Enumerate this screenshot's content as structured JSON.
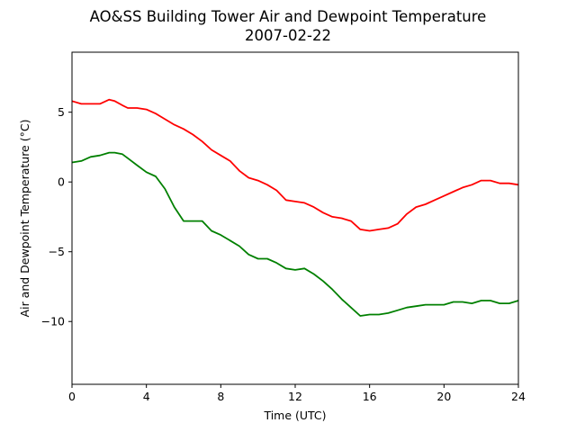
{
  "chart_data": {
    "type": "line",
    "title": "AO&SS Building Tower Air and Dewpoint Temperature",
    "subtitle": "2007-02-22",
    "xlabel": "Time (UTC)",
    "ylabel": "Air and Dewpoint Temperature (°C)",
    "xlim": [
      0,
      24
    ],
    "ylim": [
      -14.5,
      9.3
    ],
    "xticks": [
      0,
      4,
      8,
      12,
      16,
      20,
      24
    ],
    "xtick_labels": [
      "0",
      "4",
      "8",
      "12",
      "16",
      "20",
      "24"
    ],
    "yticks": [
      5,
      0,
      -5,
      -10
    ],
    "ytick_labels": [
      "5",
      "0",
      "−5",
      "−10"
    ],
    "grid": false,
    "series": [
      {
        "color": "#ff0000",
        "x": [
          0,
          0.5,
          1.0,
          1.5,
          2.0,
          2.3,
          2.7,
          3.0,
          3.5,
          4.0,
          4.5,
          5.0,
          5.5,
          6.0,
          6.5,
          7.0,
          7.5,
          8.0,
          8.5,
          9.0,
          9.5,
          10.0,
          10.5,
          11.0,
          11.5,
          12.0,
          12.5,
          13.0,
          13.5,
          14.0,
          14.5,
          15.0,
          15.5,
          16.0,
          16.5,
          17.0,
          17.5,
          18.0,
          18.5,
          19.0,
          19.5,
          20.0,
          20.5,
          21.0,
          21.5,
          22.0,
          22.5,
          23.0,
          23.5,
          24.0
        ],
        "y": [
          5.8,
          5.6,
          5.6,
          5.6,
          5.9,
          5.8,
          5.5,
          5.3,
          5.3,
          5.2,
          4.9,
          4.5,
          4.1,
          3.8,
          3.4,
          2.9,
          2.3,
          1.9,
          1.5,
          0.8,
          0.3,
          0.1,
          -0.2,
          -0.6,
          -1.3,
          -1.4,
          -1.5,
          -1.8,
          -2.2,
          -2.5,
          -2.6,
          -2.8,
          -3.4,
          -3.5,
          -3.4,
          -3.3,
          -3.0,
          -2.3,
          -1.8,
          -1.6,
          -1.3,
          -1.0,
          -0.7,
          -0.4,
          -0.2,
          0.1,
          0.1,
          -0.1,
          -0.1,
          -0.2
        ]
      },
      {
        "color": "#008000",
        "x": [
          0,
          0.5,
          1.0,
          1.5,
          2.0,
          2.3,
          2.7,
          3.0,
          3.5,
          4.0,
          4.5,
          5.0,
          5.5,
          6.0,
          6.5,
          7.0,
          7.5,
          8.0,
          8.5,
          9.0,
          9.5,
          10.0,
          10.5,
          11.0,
          11.5,
          12.0,
          12.5,
          13.0,
          13.5,
          14.0,
          14.5,
          15.0,
          15.5,
          16.0,
          16.5,
          17.0,
          17.5,
          18.0,
          18.5,
          19.0,
          19.5,
          20.0,
          20.5,
          21.0,
          21.5,
          22.0,
          22.5,
          23.0,
          23.5,
          24.0
        ],
        "y": [
          1.4,
          1.5,
          1.8,
          1.9,
          2.1,
          2.1,
          2.0,
          1.7,
          1.2,
          0.7,
          0.4,
          -0.5,
          -1.8,
          -2.8,
          -2.8,
          -2.8,
          -3.5,
          -3.8,
          -4.2,
          -4.6,
          -5.2,
          -5.5,
          -5.5,
          -5.8,
          -6.2,
          -6.3,
          -6.2,
          -6.6,
          -7.1,
          -7.7,
          -8.4,
          -9.0,
          -9.6,
          -9.5,
          -9.5,
          -9.4,
          -9.2,
          -9.0,
          -8.9,
          -8.8,
          -8.8,
          -8.8,
          -8.6,
          -8.6,
          -8.7,
          -8.5,
          -8.5,
          -8.7,
          -8.7,
          -8.5
        ]
      }
    ]
  }
}
